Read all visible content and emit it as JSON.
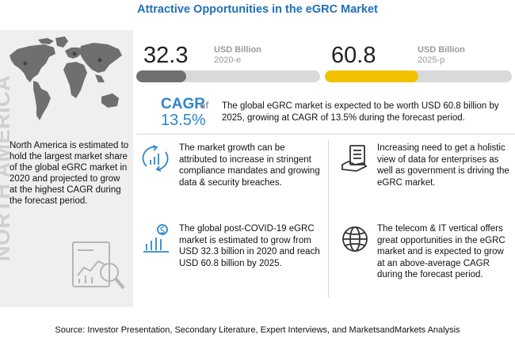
{
  "title": "Attractive Opportunities in the eGRC Market",
  "left_panel": {
    "summary": "North America is estimated to hold the largest market share of the global eGRC market in 2020 and projected to grow at the highest CAGR during the forecast period.",
    "region_label": "NORTH AMERICA",
    "icons": [
      "world-map-icon",
      "analysis-chart-icon"
    ]
  },
  "metrics": [
    {
      "value": "32.3",
      "unit": "USD Billion",
      "year": "2020-e",
      "bar_fill_fraction": 0.27,
      "bar_color": "#707070"
    },
    {
      "value": "60.8",
      "unit": "USD Billion",
      "year": "2025-p",
      "bar_fill_fraction": 0.5,
      "bar_color": "#f2c200"
    }
  ],
  "cagr": {
    "label": "CAGR",
    "of": "of",
    "value": "13.5%",
    "text": "The global eGRC market is expected to be worth USD 60.8 billion by 2025, growing at CAGR of 13.5% during the forecast period."
  },
  "facts": [
    {
      "icon": "growth-arrows-icon",
      "text": "The market growth can be attributed to increase in stringent compliance mandates and growing data & security breaches."
    },
    {
      "icon": "hand-coins-icon",
      "text": "Increasing need to get a holistic view of data for enterprises as well as government is driving the eGRC market."
    },
    {
      "icon": "dollar-bar-chart-icon",
      "text": "The global post-COVID-19 eGRC market is estimated to grow from USD 32.3 billion in 2020 and reach USD 60.8 billion by 2025."
    },
    {
      "icon": "globe-icon",
      "text": "The telecom & IT vertical offers great opportunities in the eGRC market and is expected to grow at an above-average CAGR during the forecast period."
    }
  ],
  "source": "Source: Investor Presentation, Secondary Literature, Expert Interviews, and MarketsandMarkets Analysis",
  "colors": {
    "title": "#1f6fb8",
    "cagr": "#2e86c9",
    "accent_yellow": "#f2c200",
    "panel_gray": "#efefef"
  }
}
